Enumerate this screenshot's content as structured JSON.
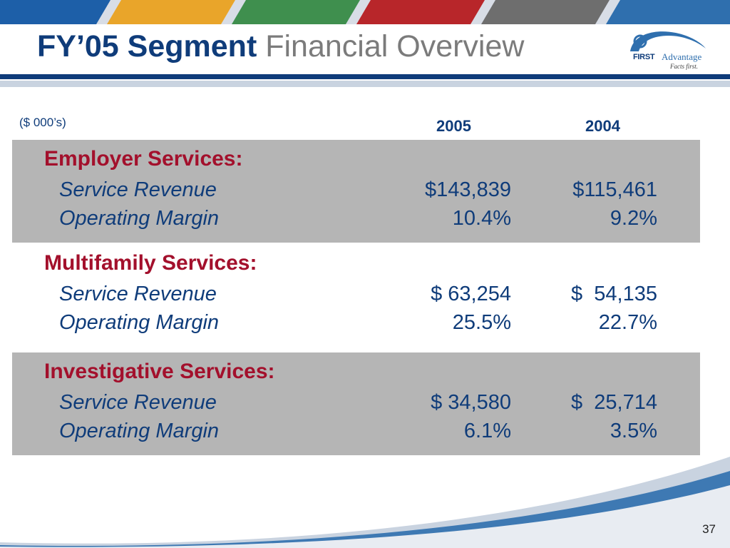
{
  "header": {
    "stripe_colors": [
      "#1d5fa8",
      "#e9a52a",
      "#3f8f4e",
      "#b8262a",
      "#6e6e6e",
      "#2f6fae"
    ],
    "title_bold": "FY’05 Segment",
    "title_light": "Financial Overview"
  },
  "logo": {
    "brand_first": "FIRST",
    "brand_second": "Advantage",
    "tagline": "Facts first."
  },
  "table": {
    "units": "($ 000’s)",
    "col_2005": "2005",
    "col_2004": "2004",
    "segments": [
      {
        "name": "Employer Services:",
        "rows": [
          {
            "label": "Service Revenue",
            "v2005": "$143,839",
            "v2004": "$115,461"
          },
          {
            "label": "Operating Margin",
            "v2005": "10.4%",
            "v2004": "9.2%"
          }
        ]
      },
      {
        "name": "Multifamily Services:",
        "rows": [
          {
            "label": "Service Revenue",
            "v2005": "$ 63,254",
            "v2004": "$  54,135"
          },
          {
            "label": "Operating Margin",
            "v2005": "25.5%",
            "v2004": "22.7%"
          }
        ]
      },
      {
        "name": "Investigative Services:",
        "rows": [
          {
            "label": "Service Revenue",
            "v2005": "$ 34,580",
            "v2004": "$  25,714"
          },
          {
            "label": "Operating Margin",
            "v2005": "6.1%",
            "v2004": "3.5%"
          }
        ]
      }
    ]
  },
  "footer": {
    "page_number": "37"
  }
}
